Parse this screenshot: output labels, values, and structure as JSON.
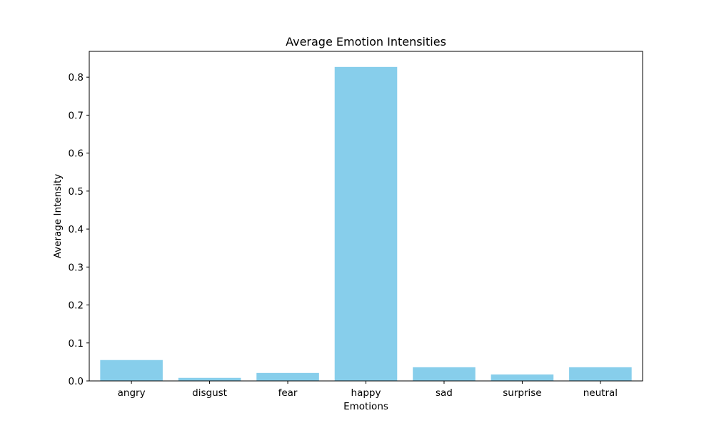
{
  "chart_data": {
    "type": "bar",
    "title": "Average Emotion Intensities",
    "xlabel": "Emotions",
    "ylabel": "Average Intensity",
    "categories": [
      "angry",
      "disgust",
      "fear",
      "happy",
      "sad",
      "surprise",
      "neutral"
    ],
    "values": [
      0.055,
      0.008,
      0.021,
      0.827,
      0.036,
      0.017,
      0.036
    ],
    "ylim": [
      0,
      0.868
    ],
    "yticks": [
      "0.0",
      "0.1",
      "0.2",
      "0.3",
      "0.4",
      "0.5",
      "0.6",
      "0.7",
      "0.8"
    ],
    "bar_color": "#87ceeb",
    "grid": false,
    "legend": "none"
  }
}
